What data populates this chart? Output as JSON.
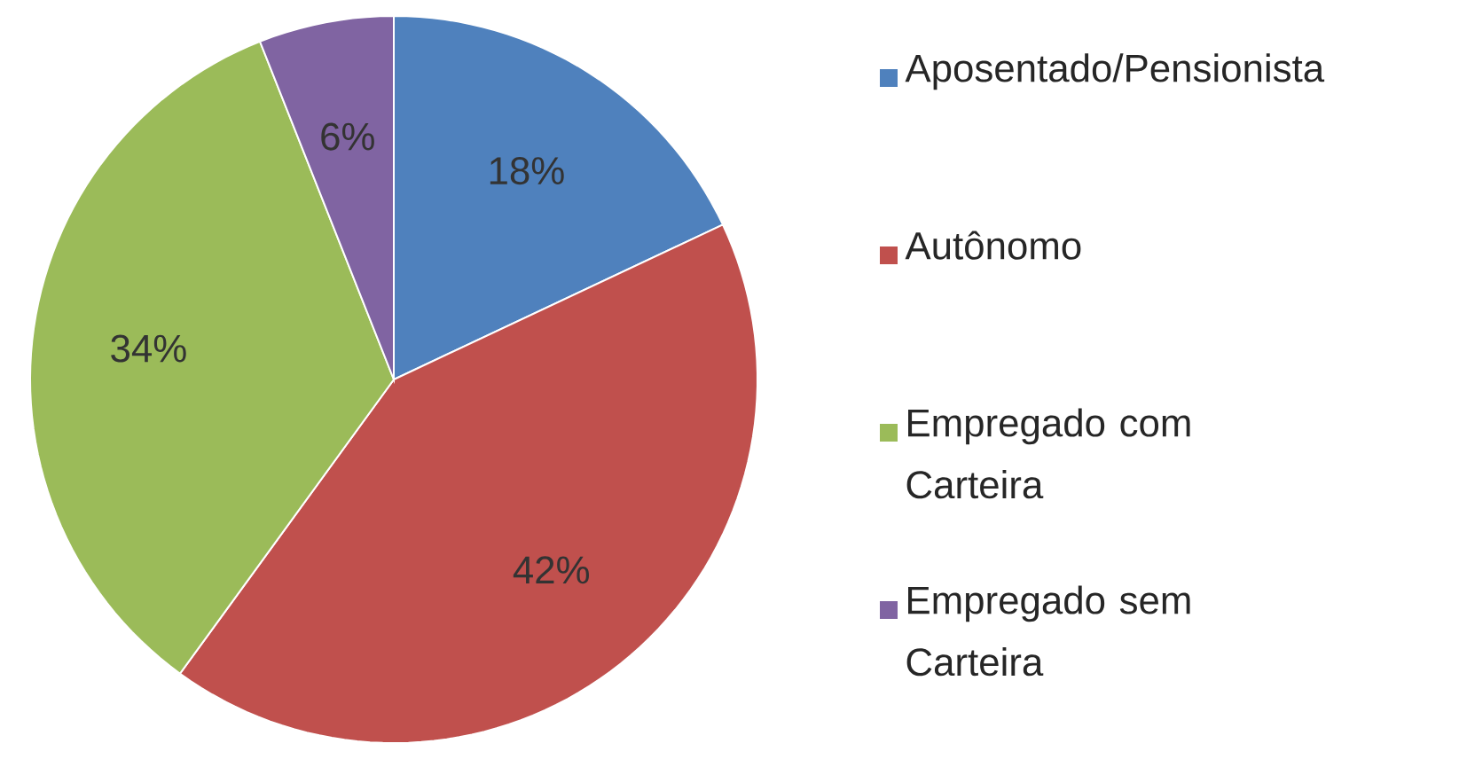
{
  "chart_data": {
    "type": "pie",
    "categories": [
      "Aposentado/Pensionista",
      "Autônomo",
      "Empregado com Carteira",
      "Empregado sem Carteira"
    ],
    "values": [
      18,
      42,
      34,
      6
    ],
    "value_labels": [
      "18%",
      "42%",
      "34%",
      "6%"
    ],
    "colors": [
      "#4f81bd",
      "#c0504d",
      "#9bbb59",
      "#8064a2"
    ],
    "legend": "right"
  }
}
